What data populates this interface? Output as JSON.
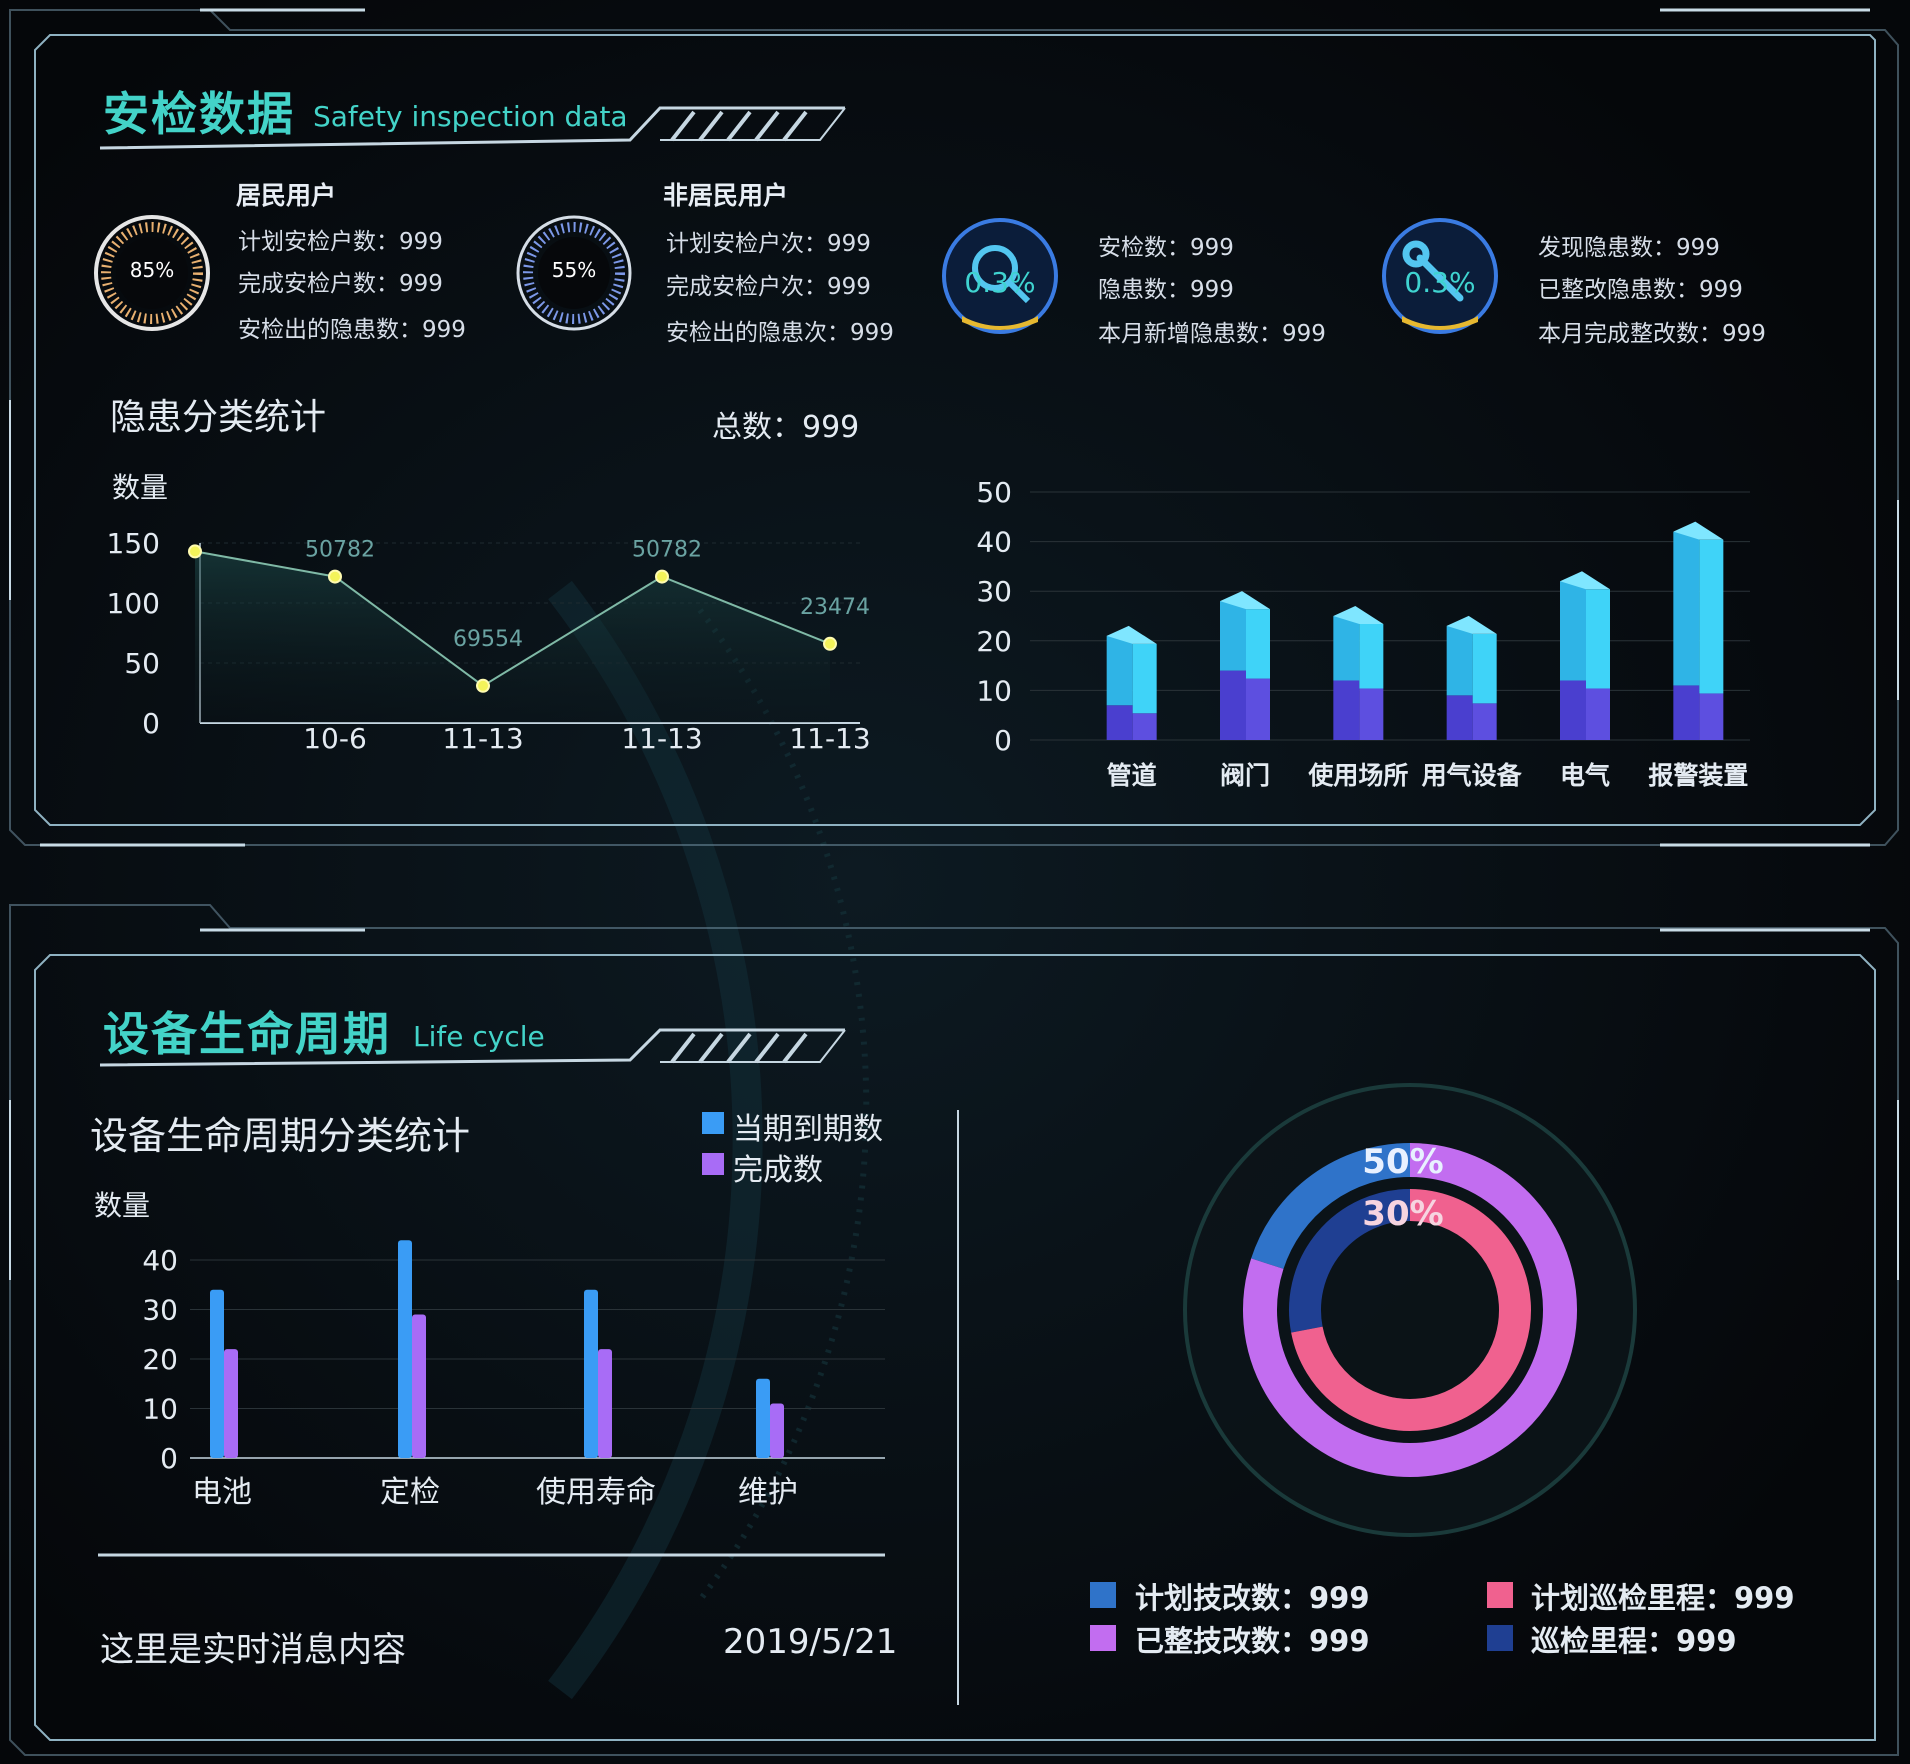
{
  "safety": {
    "title_zh": "安检数据",
    "title_en": "Safety inspection data",
    "residential": {
      "heading": "居民用户",
      "gauge_label": "85%",
      "gauge_value": 0.85,
      "lines": [
        "计划安检户数：999",
        "完成安检户数：999",
        "安检出的隐患数：999"
      ]
    },
    "nonresidential": {
      "heading": "非居民用户",
      "gauge_label": "55%",
      "gauge_value": 0.55,
      "lines": [
        "计划安检户次：999",
        "完成安检户次：999",
        "安检出的隐患次：999"
      ]
    },
    "inspect": {
      "badge": "0.3%",
      "icon": "magnifier-icon",
      "lines": [
        "安检数：999",
        "隐患数：999",
        "本月新增隐患数：999"
      ]
    },
    "rectify": {
      "badge": "0.3%",
      "icon": "wrench-icon",
      "lines": [
        "发现隐患数：999",
        "已整改隐患数：999",
        "本月完成整改数：999"
      ]
    },
    "hazard_title": "隐患分类统计",
    "total_label": "总数：999"
  },
  "lifecycle": {
    "title_zh": "设备生命周期",
    "title_en": "Life cycle",
    "chart_title": "设备生命周期分类统计",
    "message": "这里是实时消息内容",
    "date": "2019/5/21"
  },
  "donut": {
    "outer_label": "50%",
    "inner_label": "30%",
    "legend": [
      {
        "label": "计划技改数：999",
        "color": "#2f73c9"
      },
      {
        "label": "已整技改数：999",
        "color": "#c26df0"
      },
      {
        "label": "计划巡检里程：999",
        "color": "#f0618f"
      },
      {
        "label": "巡检里程：999",
        "color": "#1f3f92"
      }
    ]
  },
  "colors": {
    "accent": "#43d3c8",
    "line": "#7fb9a6",
    "point": "#f3f35a",
    "bar_top": "#3fd3f8",
    "bar_bottom": "#5347dd",
    "series_a": "#3a9cf5",
    "series_b": "#a86cf6"
  },
  "chart_data": [
    {
      "type": "line",
      "ylabel": "数量",
      "x": [
        "",
        "10-6",
        "11-13",
        "11-13",
        "11-13"
      ],
      "values": [
        143,
        122,
        31,
        122,
        66
      ],
      "data_labels": [
        "",
        "50782",
        "69554",
        "50782",
        "23474"
      ],
      "ylim": [
        0,
        150
      ],
      "yticks": [
        0,
        50,
        100,
        150
      ],
      "grid": true
    },
    {
      "type": "bar",
      "categories": [
        "管道",
        "阀门",
        "使用场所",
        "用气设备",
        "电气",
        "报警装置"
      ],
      "series": [
        {
          "values": [
            7,
            14,
            12,
            9,
            12,
            11
          ]
        },
        {
          "values": [
            14,
            14,
            13,
            14,
            20,
            31
          ]
        }
      ],
      "stacked": true,
      "ylim": [
        0,
        50
      ],
      "yticks": [
        0,
        10,
        20,
        30,
        40,
        50
      ],
      "grid": true
    },
    {
      "type": "bar",
      "ylabel": "数量",
      "categories": [
        "电池",
        "定检",
        "使用寿命",
        "维护"
      ],
      "series": [
        {
          "name": "当期到期数",
          "values": [
            34,
            44,
            34,
            16
          ]
        },
        {
          "name": "完成数",
          "values": [
            22,
            29,
            22,
            11
          ]
        }
      ],
      "ylim": [
        0,
        40
      ],
      "yticks": [
        0,
        10,
        20,
        30,
        40
      ],
      "grid": true
    },
    {
      "type": "pie",
      "rings": [
        {
          "label": "50%",
          "slices": [
            {
              "name": "计划技改数",
              "value": 20
            },
            {
              "name": "已整技改数",
              "value": 80
            }
          ]
        },
        {
          "label": "30%",
          "slices": [
            {
              "name": "巡检里程",
              "value": 28
            },
            {
              "name": "计划巡检里程",
              "value": 72
            }
          ]
        }
      ]
    }
  ]
}
